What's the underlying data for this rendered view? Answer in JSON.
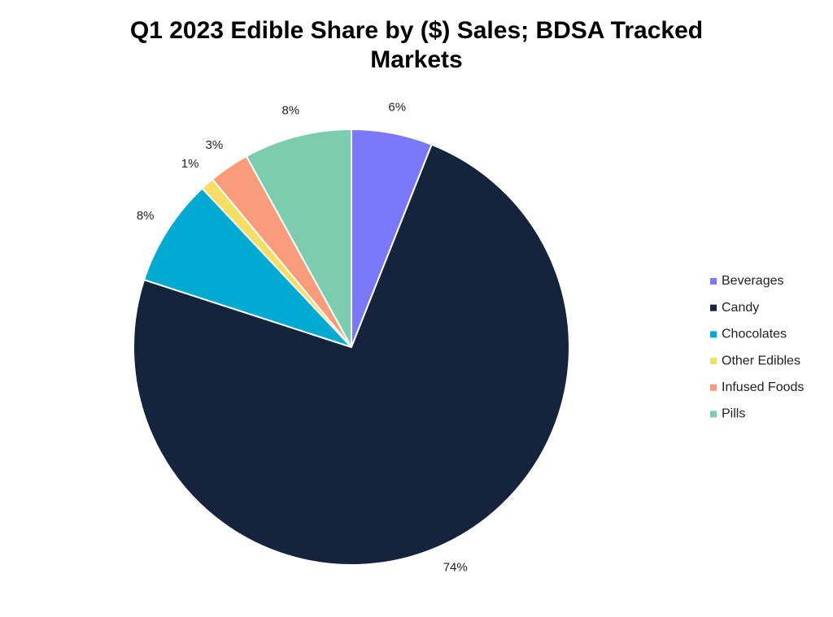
{
  "chart_data": {
    "type": "pie",
    "title": "Q1 2023 Edible Share by ($) Sales; BDSA Tracked Markets",
    "categories": [
      "Beverages",
      "Candy",
      "Chocolates",
      "Other Edibles",
      "Infused Foods",
      "Pills"
    ],
    "values": [
      6,
      74,
      8,
      1,
      3,
      8
    ],
    "value_labels": [
      "6%",
      "74%",
      "8%",
      "1%",
      "3%",
      "8%"
    ],
    "colors": [
      "#7b78fb",
      "#15233d",
      "#00a9cf",
      "#f6dd63",
      "#f99c7c",
      "#7ccdb0"
    ],
    "legend": "right"
  }
}
